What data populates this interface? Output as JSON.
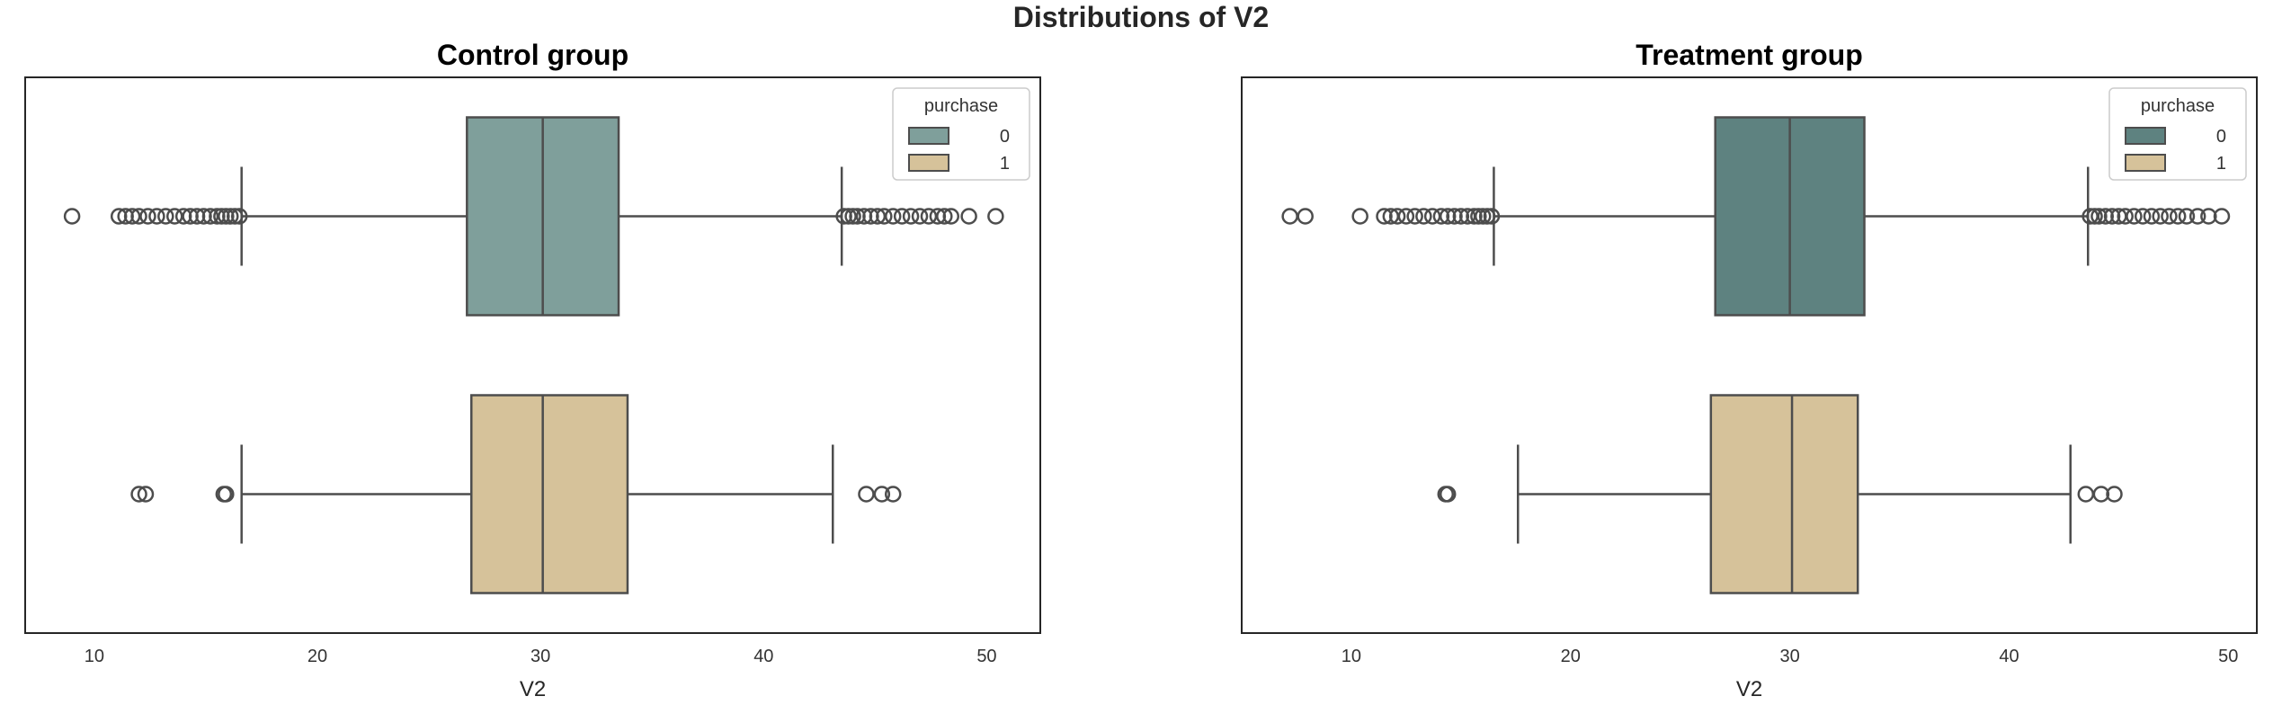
{
  "chart_data": {
    "title": "Distributions of V2",
    "colors": {
      "control_0": "#7f9f9b",
      "treatment_0": "#5e8280",
      "group_1": "#d6c29a",
      "line": "#4d4d4d",
      "frame": "#262626"
    },
    "subplots": [
      {
        "type": "boxplot",
        "orientation": "horizontal",
        "title": "Control group",
        "xlabel": "V2",
        "xlim": [
          6.9,
          52.4
        ],
        "xticks": [
          10,
          20,
          30,
          40,
          50
        ],
        "legend": {
          "title": "purchase",
          "position": "top-right",
          "entries": [
            "0",
            "1"
          ]
        },
        "series": [
          {
            "name": "0",
            "color": "#7f9f9b",
            "whisker_low": 16.6,
            "q1": 26.7,
            "median": 30.1,
            "q3": 33.5,
            "whisker_high": 43.5,
            "outliers": [
              9.0,
              11.1,
              11.4,
              11.7,
              12.0,
              12.4,
              12.8,
              13.2,
              13.6,
              14.0,
              14.3,
              14.6,
              14.9,
              15.2,
              15.5,
              15.7,
              15.9,
              16.1,
              16.3,
              16.5,
              43.6,
              43.8,
              44.0,
              44.2,
              44.5,
              44.8,
              45.1,
              45.4,
              45.8,
              46.2,
              46.6,
              47.0,
              47.4,
              47.8,
              48.1,
              48.4,
              49.2,
              50.4
            ]
          },
          {
            "name": "1",
            "color": "#d6c29a",
            "whisker_low": 16.6,
            "q1": 26.9,
            "median": 30.1,
            "q3": 33.9,
            "whisker_high": 43.1,
            "outliers": [
              12.0,
              12.3,
              15.8,
              15.9,
              44.6,
              45.3,
              45.8
            ]
          }
        ]
      },
      {
        "type": "boxplot",
        "orientation": "horizontal",
        "title": "Treatment group",
        "xlabel": "V2",
        "xlim": [
          5.0,
          51.3
        ],
        "xticks": [
          10,
          20,
          30,
          40,
          50
        ],
        "legend": {
          "title": "purchase",
          "position": "top-right",
          "entries": [
            "0",
            "1"
          ]
        },
        "series": [
          {
            "name": "0",
            "color": "#5e8280",
            "whisker_low": 16.5,
            "q1": 26.6,
            "median": 30.0,
            "q3": 33.4,
            "whisker_high": 43.6,
            "outliers": [
              7.2,
              7.9,
              10.4,
              11.5,
              11.8,
              12.1,
              12.5,
              12.9,
              13.3,
              13.7,
              14.1,
              14.4,
              14.7,
              15.0,
              15.3,
              15.6,
              15.8,
              16.0,
              16.2,
              16.4,
              43.7,
              43.9,
              44.1,
              44.4,
              44.7,
              45.0,
              45.3,
              45.7,
              46.1,
              46.5,
              46.9,
              47.3,
              47.7,
              48.1,
              48.6,
              49.1,
              49.7
            ]
          },
          {
            "name": "1",
            "color": "#d6c29a",
            "whisker_low": 17.6,
            "q1": 26.4,
            "median": 30.1,
            "q3": 33.1,
            "whisker_high": 42.8,
            "outliers": [
              14.3,
              14.4,
              43.5,
              44.2,
              44.8
            ]
          }
        ]
      }
    ]
  }
}
